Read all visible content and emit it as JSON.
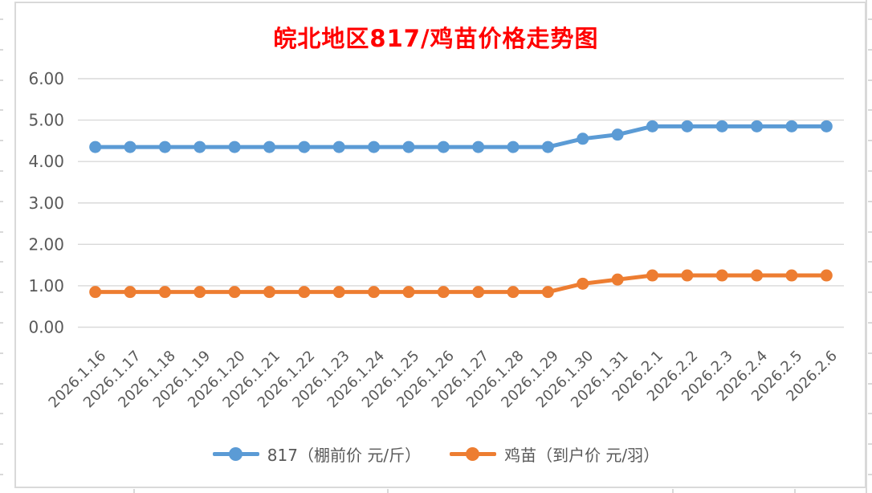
{
  "chart_data": {
    "type": "line",
    "title": "皖北地区817/鸡苗价格走势图",
    "title_color": "#FF0000",
    "x": [
      "2026.1.16",
      "2026.1.17",
      "2026.1.18",
      "2026.1.19",
      "2026.1.20",
      "2026.1.21",
      "2026.1.22",
      "2026.1.23",
      "2026.1.24",
      "2026.1.25",
      "2026.1.26",
      "2026.1.27",
      "2026.1.28",
      "2026.1.29",
      "2026.1.30",
      "2026.1.31",
      "2026.2.1",
      "2026.2.2",
      "2026.2.3",
      "2026.2.4",
      "2026.2.5",
      "2026.2.6"
    ],
    "series": [
      {
        "name": "817（棚前价 元/斤）",
        "color": "#5B9BD5",
        "values": [
          4.35,
          4.35,
          4.35,
          4.35,
          4.35,
          4.35,
          4.35,
          4.35,
          4.35,
          4.35,
          4.35,
          4.35,
          4.35,
          4.35,
          4.55,
          4.65,
          4.85,
          4.85,
          4.85,
          4.85,
          4.85,
          4.85
        ]
      },
      {
        "name": "鸡苗（到户价 元/羽）",
        "color": "#ED7D31",
        "values": [
          0.85,
          0.85,
          0.85,
          0.85,
          0.85,
          0.85,
          0.85,
          0.85,
          0.85,
          0.85,
          0.85,
          0.85,
          0.85,
          0.85,
          1.05,
          1.15,
          1.25,
          1.25,
          1.25,
          1.25,
          1.25,
          1.25
        ]
      }
    ],
    "ylim": [
      0,
      6
    ],
    "ytick_values": [
      0,
      1,
      2,
      3,
      4,
      5,
      6
    ],
    "ytick_labels": [
      "0.00",
      "1.00",
      "2.00",
      "3.00",
      "4.00",
      "5.00",
      "6.00"
    ],
    "xlabel": "",
    "ylabel": "",
    "grid": true,
    "legend_position": "bottom",
    "marker": "circle",
    "axis_label_color": "#595959",
    "gridline_color": "#D9D9D9"
  }
}
